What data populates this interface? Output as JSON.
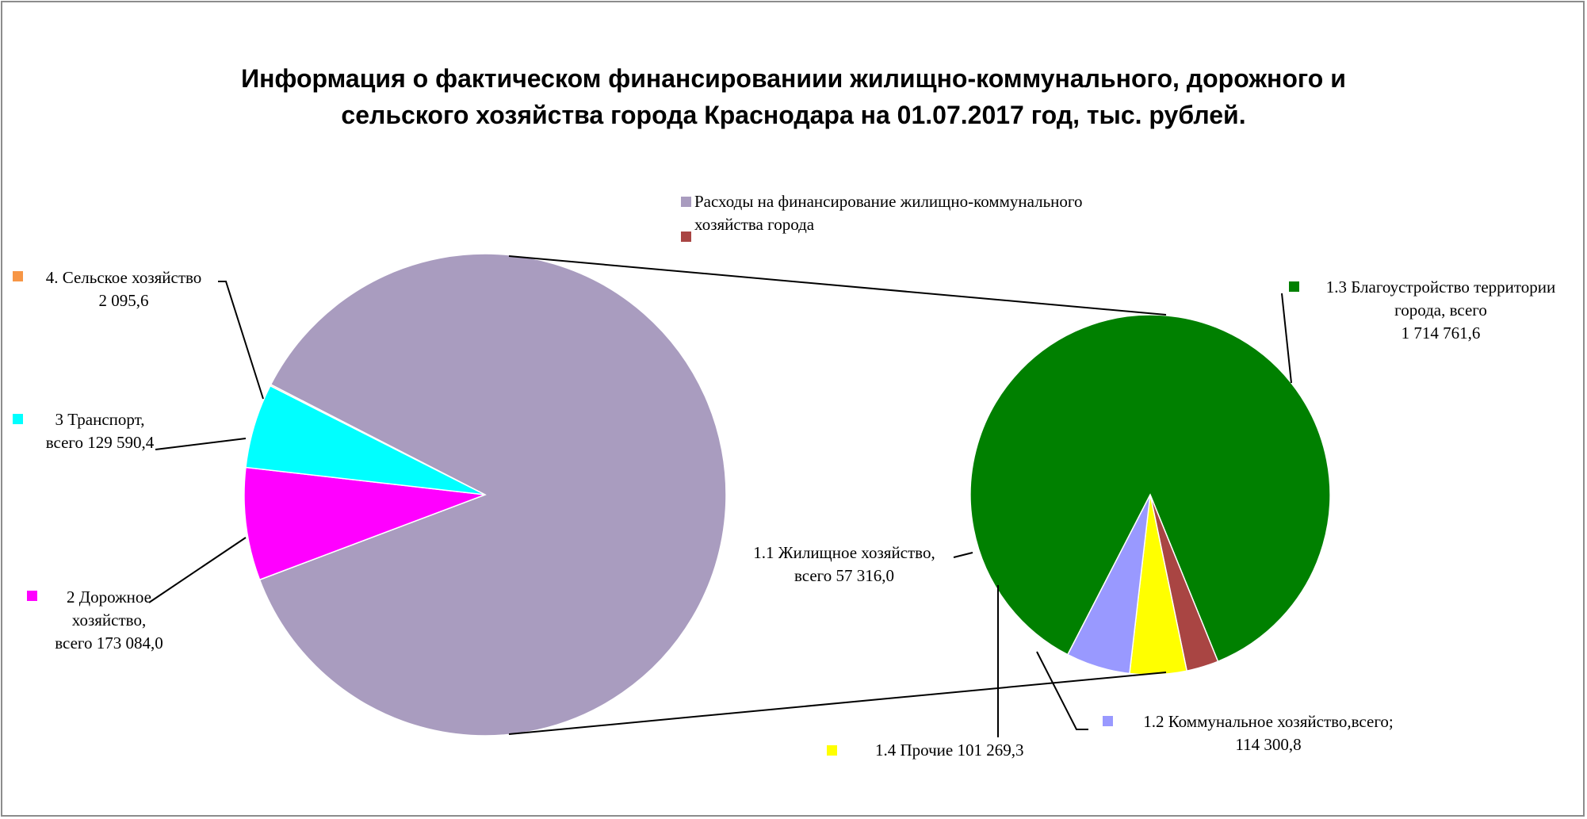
{
  "chart_data": {
    "type": "pie",
    "title_lines": [
      "Информация о фактическом финансированиии жилищно-коммунального, дорожного и",
      "сельского хозяйства города Краснодара на 01.07.2017 год, тыс. рублей."
    ],
    "legend": [
      {
        "lines": [
          "Расходы на финансирование жилищно-коммунального",
          "хозяйства города"
        ],
        "color": "#A99CBF"
      },
      {
        "lines": [
          ""
        ],
        "color": "#A94543"
      }
    ],
    "main_pie": {
      "slices": [
        {
          "name": "Расходы на финансирование жилищно-коммунального хозяйства города",
          "value": 1987647.7,
          "color": "#A99CBF"
        },
        {
          "name": "2 Дорожное хозяйство",
          "value": 173084.0,
          "color": "#FF00FF",
          "label_lines": [
            "2 Дорожное",
            "хозяйство,",
            "всего 173 084,0"
          ]
        },
        {
          "name": "3 Транспорт",
          "value": 129590.4,
          "color": "#00FFFF",
          "label_lines": [
            "3 Транспорт,",
            "всего 129 590,4"
          ]
        },
        {
          "name": "4. Сельское хозяйство",
          "value": 2095.6,
          "color": "#F79646",
          "label_lines": [
            "4. Сельское хозяйство",
            "2 095,6"
          ]
        }
      ]
    },
    "secondary_pie": {
      "slices": [
        {
          "name": "1.3 Благоустройство территории города, всего",
          "value": 1714761.6,
          "color": "#008000",
          "label_lines": [
            "1.3 Благоустройство территории",
            "города, всего",
            "1 714 761,6"
          ]
        },
        {
          "name": "1.1 Жилищное хозяйство",
          "value": 57316.0,
          "color": "#A94543",
          "label_lines": [
            "1.1 Жилищное хозяйство,",
            "всего 57 316,0"
          ]
        },
        {
          "name": "1.4 Прочие",
          "value": 101269.3,
          "color": "#FFFF00",
          "label_lines": [
            "1.4 Прочие 101 269,3"
          ]
        },
        {
          "name": "1.2 Коммунальное хозяйство",
          "value": 114300.8,
          "color": "#9999FF",
          "label_lines": [
            "1.2 Коммунальное хозяйство,всего;",
            "114 300,8"
          ]
        }
      ]
    }
  }
}
